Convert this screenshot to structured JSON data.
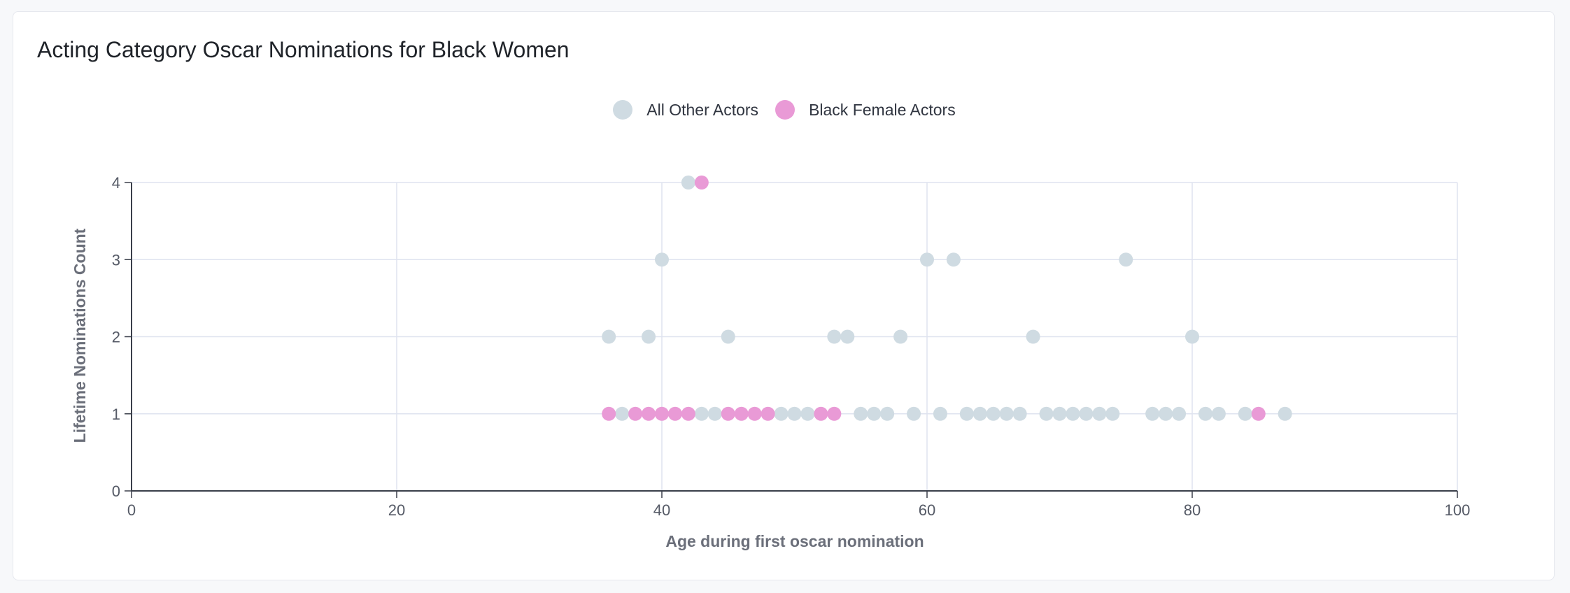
{
  "title": "Acting Category Oscar Nominations for Black Women",
  "colors": {
    "other": "#cfdbe2",
    "black_female": "#e99ad6",
    "grid": "#dfe3ef",
    "axis": "#3a3f4a"
  },
  "legend": [
    {
      "label": "All Other Actors",
      "color": "#cfdbe2"
    },
    {
      "label": "Black Female Actors",
      "color": "#e99ad6"
    }
  ],
  "chart_data": {
    "type": "scatter",
    "title": "Acting Category Oscar Nominations for Black Women",
    "xlabel": "Age during first oscar nomination",
    "ylabel": "Lifetime Nominations Count",
    "xlim": [
      0,
      100
    ],
    "ylim": [
      0,
      4
    ],
    "xticks": [
      0,
      20,
      40,
      60,
      80,
      100
    ],
    "yticks": [
      0,
      1,
      2,
      3,
      4
    ],
    "grid": true,
    "legend_position": "top-center",
    "series": [
      {
        "name": "All Other Actors",
        "points": [
          [
            42,
            4
          ],
          [
            40,
            3
          ],
          [
            60,
            3
          ],
          [
            62,
            3
          ],
          [
            75,
            3
          ],
          [
            36,
            2
          ],
          [
            39,
            2
          ],
          [
            45,
            2
          ],
          [
            53,
            2
          ],
          [
            54,
            2
          ],
          [
            58,
            2
          ],
          [
            68,
            2
          ],
          [
            80,
            2
          ],
          [
            37,
            1
          ],
          [
            43,
            1
          ],
          [
            44,
            1
          ],
          [
            49,
            1
          ],
          [
            50,
            1
          ],
          [
            51,
            1
          ],
          [
            55,
            1
          ],
          [
            56,
            1
          ],
          [
            57,
            1
          ],
          [
            59,
            1
          ],
          [
            61,
            1
          ],
          [
            63,
            1
          ],
          [
            64,
            1
          ],
          [
            65,
            1
          ],
          [
            66,
            1
          ],
          [
            67,
            1
          ],
          [
            69,
            1
          ],
          [
            70,
            1
          ],
          [
            71,
            1
          ],
          [
            72,
            1
          ],
          [
            73,
            1
          ],
          [
            74,
            1
          ],
          [
            77,
            1
          ],
          [
            78,
            1
          ],
          [
            79,
            1
          ],
          [
            81,
            1
          ],
          [
            82,
            1
          ],
          [
            84,
            1
          ],
          [
            87,
            1
          ]
        ]
      },
      {
        "name": "Black Female Actors",
        "points": [
          [
            43,
            4
          ],
          [
            36,
            1
          ],
          [
            38,
            1
          ],
          [
            39,
            1
          ],
          [
            40,
            1
          ],
          [
            41,
            1
          ],
          [
            42,
            1
          ],
          [
            45,
            1
          ],
          [
            46,
            1
          ],
          [
            47,
            1
          ],
          [
            48,
            1
          ],
          [
            52,
            1
          ],
          [
            53,
            1
          ],
          [
            85,
            1
          ]
        ]
      }
    ]
  }
}
